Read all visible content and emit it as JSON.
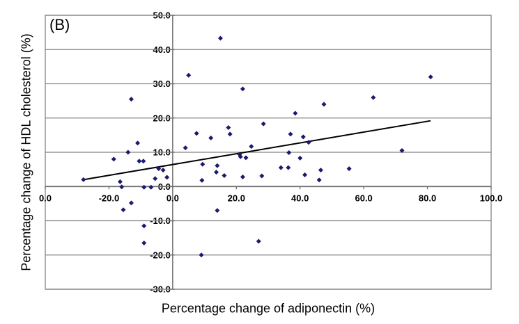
{
  "chart_data": {
    "type": "scatter",
    "panel_label": "(B)",
    "title": "",
    "xlabel": "Percentage change of adiponectin (%)",
    "ylabel": "Percentage change of HDL cholesterol (%)",
    "xlim": [
      -40,
      100
    ],
    "ylim": [
      -30,
      50
    ],
    "xtick_values": [
      -40,
      -20,
      0,
      20,
      40,
      60,
      80,
      100
    ],
    "xtick_labels": [
      "0.0",
      "-20.0",
      "0.0",
      "20.0",
      "40.0",
      "60.0",
      "80.0",
      "100.0"
    ],
    "first_xtick_label_clipped": true,
    "ytick_values": [
      50,
      40,
      30,
      20,
      10,
      0,
      -10,
      -20,
      -30
    ],
    "ytick_labels": [
      "50.0",
      "40.0",
      "30.0",
      "20.0",
      "10.0",
      "0.0",
      "-10.0",
      "-20.0",
      "-30.0"
    ],
    "grid": "horizontal",
    "legend": "none",
    "colors": {
      "marker": "#1a1a6e",
      "trendline": "#000000",
      "gridline": "#848484",
      "axis": "#6e6e6e",
      "border": "#848484",
      "background": "#ffffff"
    },
    "marker": {
      "shape": "diamond",
      "size": 7
    },
    "trendline": {
      "type": "linear",
      "x1": -28,
      "y1": 2.0,
      "x2": 81,
      "y2": 19.2
    },
    "points": [
      [
        15,
        43.3
      ],
      [
        5,
        32.5
      ],
      [
        81,
        32.0
      ],
      [
        22,
        28.5
      ],
      [
        63,
        26.0
      ],
      [
        -13,
        25.5
      ],
      [
        47.5,
        24.0
      ],
      [
        38.5,
        21.4
      ],
      [
        28.5,
        18.3
      ],
      [
        17.5,
        17.2
      ],
      [
        18,
        15.3
      ],
      [
        7.5,
        15.5
      ],
      [
        12,
        14.2
      ],
      [
        37,
        15.3
      ],
      [
        41,
        14.5
      ],
      [
        42.7,
        12.9
      ],
      [
        24.7,
        11.7
      ],
      [
        4,
        11.3
      ],
      [
        -11,
        12.7
      ],
      [
        -14,
        10.0
      ],
      [
        -18.5,
        8.0
      ],
      [
        -10.5,
        7.4
      ],
      [
        -9.2,
        7.4
      ],
      [
        21,
        9.4
      ],
      [
        21.3,
        8.7
      ],
      [
        23,
        8.4
      ],
      [
        36.5,
        9.9
      ],
      [
        40,
        8.3
      ],
      [
        72,
        10.5
      ],
      [
        9.4,
        6.5
      ],
      [
        14,
        6.1
      ],
      [
        13.7,
        4.2
      ],
      [
        16.2,
        3.2
      ],
      [
        9.2,
        1.8
      ],
      [
        22,
        2.8
      ],
      [
        28,
        3.1
      ],
      [
        34,
        5.5
      ],
      [
        36.3,
        5.5
      ],
      [
        41.5,
        3.4
      ],
      [
        46.5,
        4.8
      ],
      [
        46,
        1.9
      ],
      [
        55.4,
        5.2
      ],
      [
        -3,
        4.8
      ],
      [
        -4.4,
        5.2
      ],
      [
        -1.8,
        2.7
      ],
      [
        -5.5,
        2.3
      ],
      [
        -28,
        2.0
      ],
      [
        -16.5,
        1.4
      ],
      [
        -16,
        -0.1
      ],
      [
        -9,
        -0.2
      ],
      [
        -6.8,
        -0.2
      ],
      [
        -13,
        -4.8
      ],
      [
        -15.5,
        -6.8
      ],
      [
        14,
        -7.0
      ],
      [
        -9,
        -11.5
      ],
      [
        -9,
        -16.5
      ],
      [
        27,
        -16.0
      ],
      [
        9,
        -20.0
      ]
    ]
  }
}
